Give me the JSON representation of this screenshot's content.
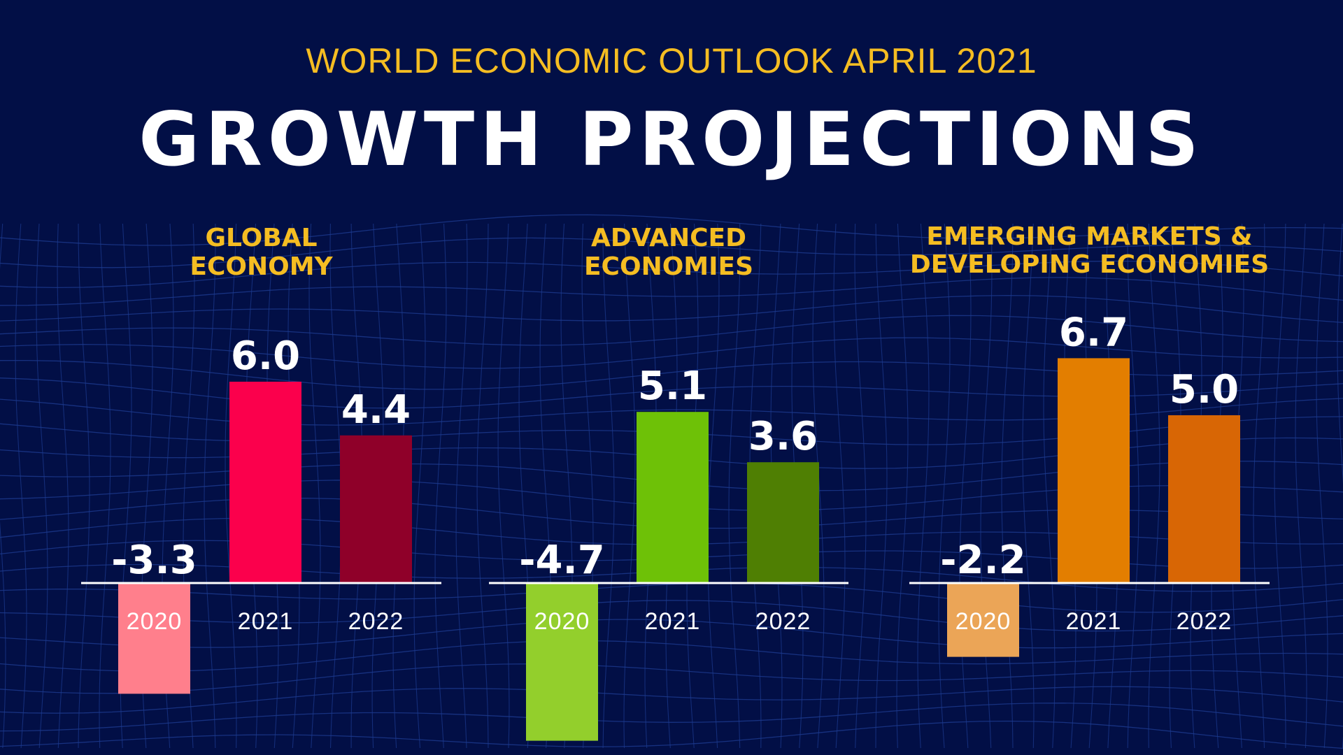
{
  "header": {
    "subtitle": "WORLD ECONOMIC OUTLOOK APRIL 2021",
    "title": "GROWTH PROJECTIONS"
  },
  "colors": {
    "background": "#020f46",
    "grid": "#1d3a8f",
    "heading": "#f5bd22",
    "text": "#ffffff"
  },
  "chart_data": [
    {
      "type": "bar",
      "title": [
        "GLOBAL",
        "ECONOMY"
      ],
      "categories": [
        "2020",
        "2021",
        "2022"
      ],
      "values": [
        -3.3,
        6.0,
        4.4
      ],
      "labels": [
        "-3.3",
        "6.0",
        "4.4"
      ],
      "colors": [
        "#ff7f8c",
        "#fb004c",
        "#8f0029"
      ]
    },
    {
      "type": "bar",
      "title": [
        "ADVANCED",
        "ECONOMIES"
      ],
      "categories": [
        "2020",
        "2021",
        "2022"
      ],
      "values": [
        -4.7,
        5.1,
        3.6
      ],
      "labels": [
        "-4.7",
        "5.1",
        "3.6"
      ],
      "colors": [
        "#93cf2c",
        "#6ec107",
        "#4f7f03"
      ]
    },
    {
      "type": "bar",
      "title": [
        "EMERGING MARKETS &",
        "DEVELOPING ECONOMIES"
      ],
      "categories": [
        "2020",
        "2021",
        "2022"
      ],
      "values": [
        -2.2,
        6.7,
        5.0
      ],
      "labels": [
        "-2.2",
        "6.7",
        "5.0"
      ],
      "colors": [
        "#eba557",
        "#e37e00",
        "#d86605"
      ]
    }
  ]
}
